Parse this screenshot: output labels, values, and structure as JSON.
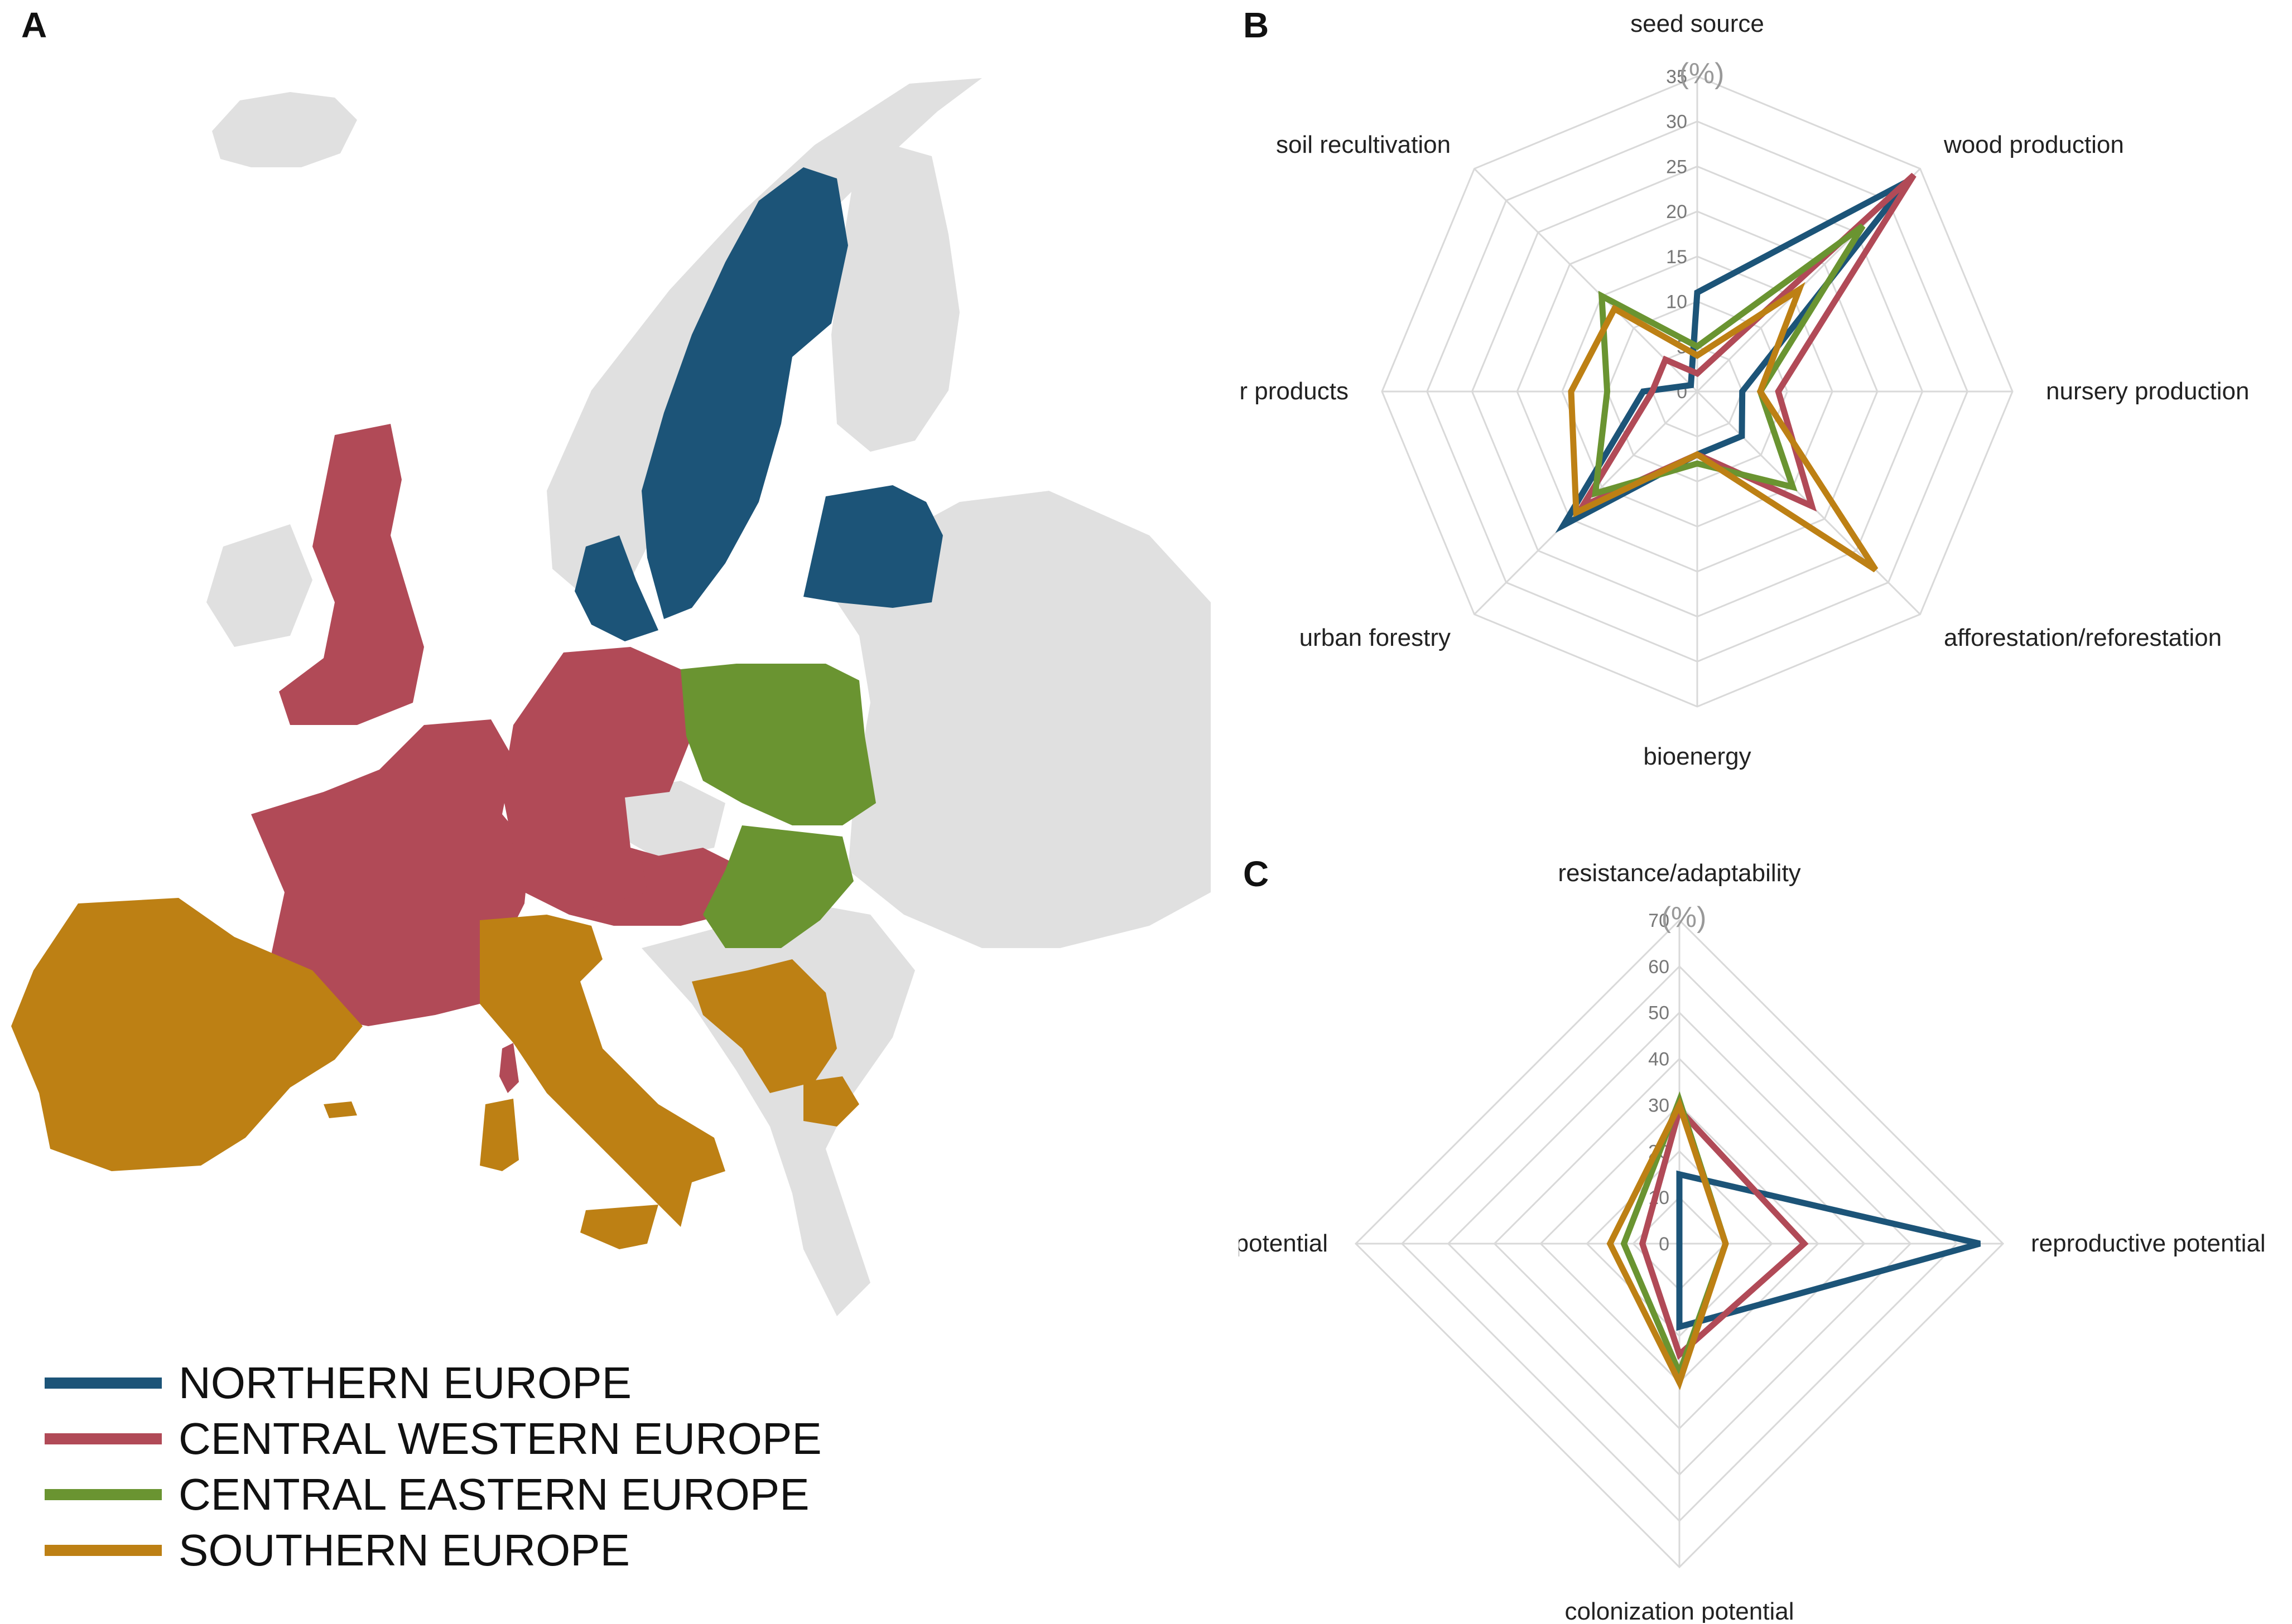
{
  "panels": {
    "a": "A",
    "b": "B",
    "c": "C"
  },
  "colors": {
    "northern": "#1c5478",
    "central_western": "#b14a57",
    "central_eastern": "#6a9431",
    "southern": "#bd8014",
    "other_country": "#e0e0e0",
    "grid": "#d9d9d9"
  },
  "legend": [
    {
      "label": "NORTHERN EUROPE",
      "color": "#1c5478"
    },
    {
      "label": "CENTRAL WESTERN EUROPE",
      "color": "#b14a57"
    },
    {
      "label": "CENTRAL EASTERN EUROPE",
      "color": "#6a9431"
    },
    {
      "label": "SOUTHERN EUROPE",
      "color": "#bd8014"
    }
  ],
  "chart_data": [
    {
      "panel": "B",
      "type": "radar",
      "unit_label": "(%)",
      "range": [
        0,
        35
      ],
      "ticks": [
        0,
        5,
        10,
        15,
        20,
        25,
        30,
        35
      ],
      "axes": [
        "seed source",
        "wood production",
        "nursery production",
        "afforestation/reforestation",
        "bioenergy",
        "urban forestry",
        "non-timber products",
        "soil recultivation"
      ],
      "series": [
        {
          "name": "NORTHERN EUROPE",
          "color": "#1c5478",
          "values": [
            11,
            33,
            5,
            7,
            7,
            21,
            6,
            1
          ]
        },
        {
          "name": "CENTRAL WESTERN EUROPE",
          "color": "#b14a57",
          "values": [
            2,
            34,
            9,
            18,
            7,
            18,
            5,
            5
          ]
        },
        {
          "name": "CENTRAL EASTERN EUROPE",
          "color": "#6a9431",
          "values": [
            5,
            26,
            7,
            15,
            8,
            16,
            10,
            15
          ]
        },
        {
          "name": "SOUTHERN EUROPE",
          "color": "#bd8014",
          "values": [
            4,
            16,
            7,
            28,
            7,
            19,
            14,
            13
          ]
        }
      ]
    },
    {
      "panel": "C",
      "type": "radar",
      "unit_label": "(%)",
      "range": [
        0,
        70
      ],
      "ticks": [
        0,
        10,
        20,
        30,
        40,
        50,
        60,
        70
      ],
      "axes": [
        "resistance/adaptability",
        "reproductive potential",
        "colonization potential",
        "eradication potential"
      ],
      "series": [
        {
          "name": "NORTHERN EUROPE",
          "color": "#1c5478",
          "values": [
            15,
            65,
            18,
            0
          ]
        },
        {
          "name": "CENTRAL WESTERN EUROPE",
          "color": "#b14a57",
          "values": [
            29,
            27,
            24,
            8
          ]
        },
        {
          "name": "CENTRAL EASTERN EUROPE",
          "color": "#6a9431",
          "values": [
            31,
            10,
            28,
            12
          ]
        },
        {
          "name": "SOUTHERN EUROPE",
          "color": "#bd8014",
          "values": [
            30,
            10,
            30,
            15
          ]
        }
      ]
    }
  ]
}
